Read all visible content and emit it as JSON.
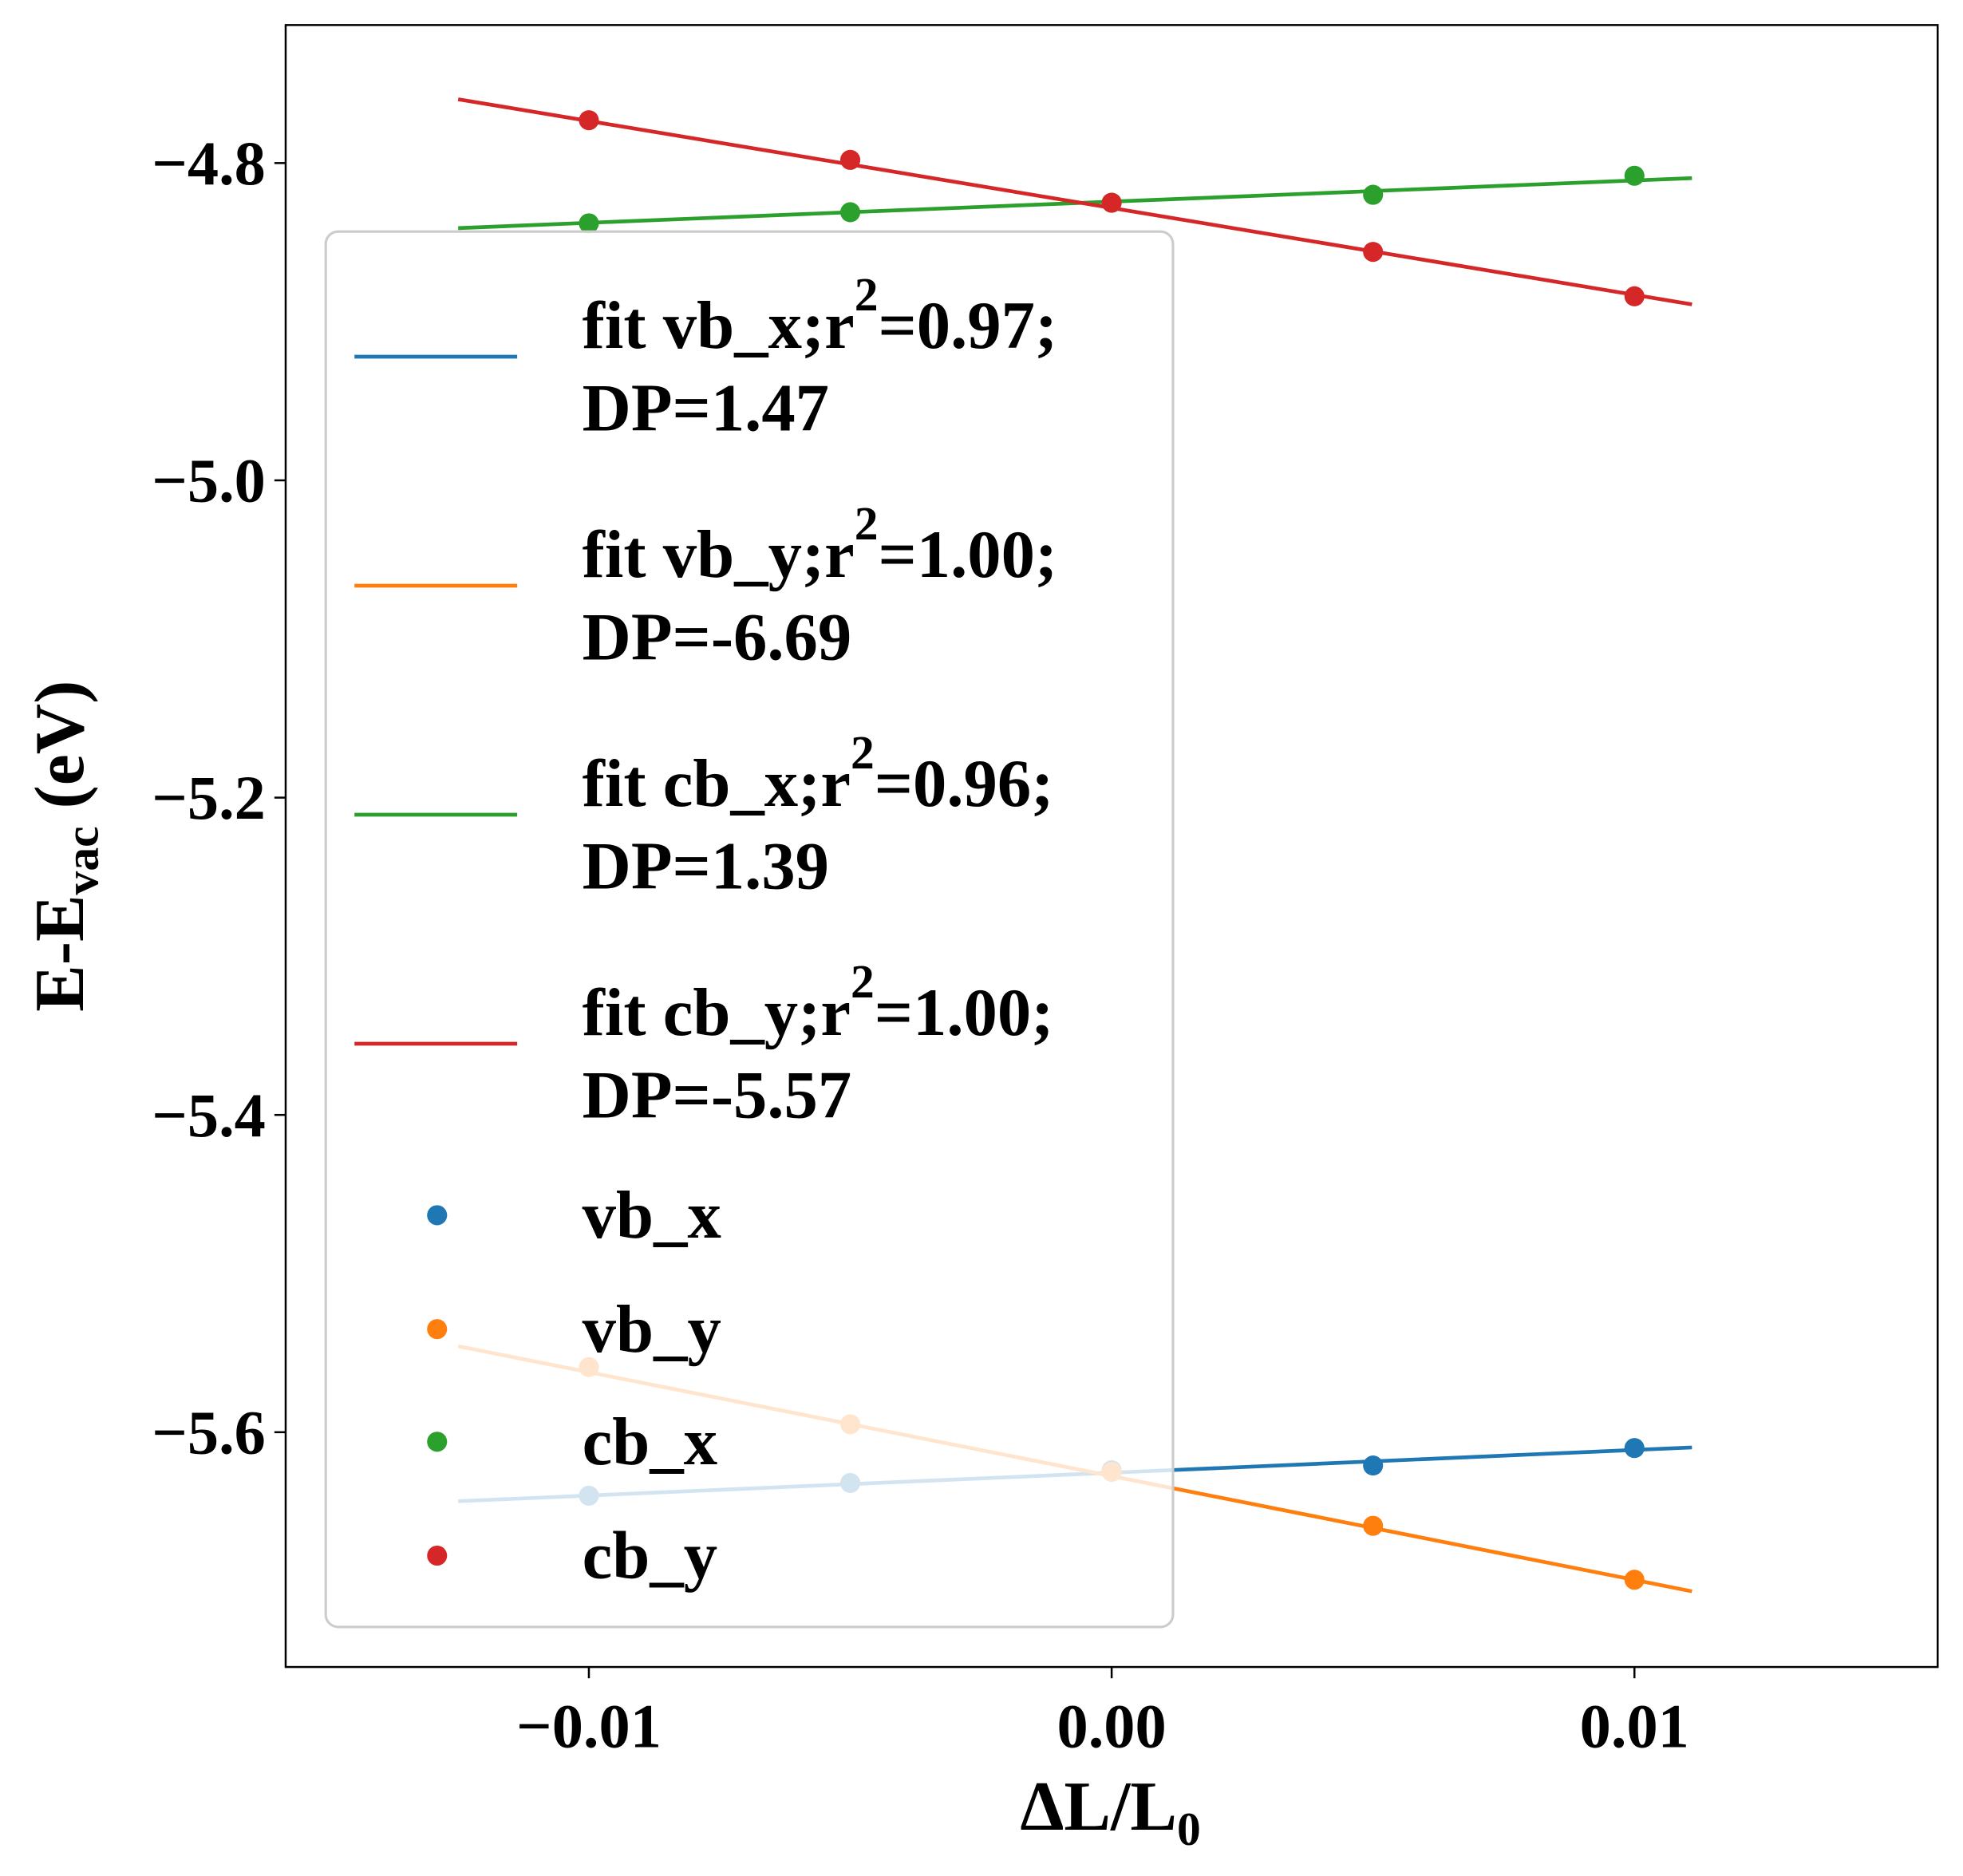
{
  "chart_data": {
    "type": "scatter",
    "title": "",
    "xlabel": "ΔL/L",
    "xlabel_sub": "0",
    "ylabel": "E-E",
    "ylabel_sub": "vac",
    "ylabel_suffix": " (eV)",
    "xlim": [
      -0.0158,
      0.0158
    ],
    "ylim": [
      -5.748,
      -4.713
    ],
    "grid": false,
    "legend_placement": "center-left",
    "xticks": [
      {
        "v": -0.01,
        "label": "−0.01"
      },
      {
        "v": 0.0,
        "label": "0.00"
      },
      {
        "v": 0.01,
        "label": "0.01"
      }
    ],
    "yticks": [
      {
        "v": -4.8,
        "label": "−4.8"
      },
      {
        "v": -5.0,
        "label": "−5.0"
      },
      {
        "v": -5.2,
        "label": "−5.2"
      },
      {
        "v": -5.4,
        "label": "−5.4"
      },
      {
        "v": -5.6,
        "label": "−5.6"
      }
    ],
    "x": [
      -0.01,
      -0.005,
      0.0,
      0.005,
      0.01
    ],
    "series": [
      {
        "name": "vb_x",
        "color": "#1f77b4",
        "values": [
          -5.64,
          -5.632,
          -5.624,
          -5.621,
          -5.61
        ],
        "fit": {
          "label1": "fit vb_x;r",
          "sup": "2",
          "label2": "=0.97;",
          "label3": "DP=1.47",
          "x": [
            -0.0125,
            0.0111
          ],
          "y": [
            -5.6435,
            -5.6096
          ]
        }
      },
      {
        "name": "vb_y",
        "color": "#ff7f0e",
        "values": [
          -5.559,
          -5.595,
          -5.625,
          -5.659,
          -5.693
        ],
        "fit": {
          "label1": "fit vb_y;r",
          "sup": "2",
          "label2": "=1.00;",
          "label3": "DP=-6.69",
          "x": [
            -0.0125,
            0.0111
          ],
          "y": [
            -5.5458,
            -5.7003
          ]
        }
      },
      {
        "name": "cb_x",
        "color": "#2ca02c",
        "values": [
          -4.838,
          -4.831,
          -4.825,
          -4.82,
          -4.808
        ],
        "fit": {
          "label1": "fit cb_x;r",
          "sup": "2",
          "label2": "=0.96;",
          "label3": "DP=1.39",
          "x": [
            -0.0125,
            0.0111
          ],
          "y": [
            -4.841,
            -4.8095
          ]
        }
      },
      {
        "name": "cb_y",
        "color": "#d62728",
        "values": [
          -4.773,
          -4.798,
          -4.825,
          -4.856,
          -4.884
        ],
        "fit": {
          "label1": "fit cb_y;r",
          "sup": "2",
          "label2": "=1.00;",
          "label3": "DP=-5.57",
          "x": [
            -0.0125,
            0.0111
          ],
          "y": [
            -4.7598,
            -4.8891
          ]
        }
      }
    ]
  }
}
